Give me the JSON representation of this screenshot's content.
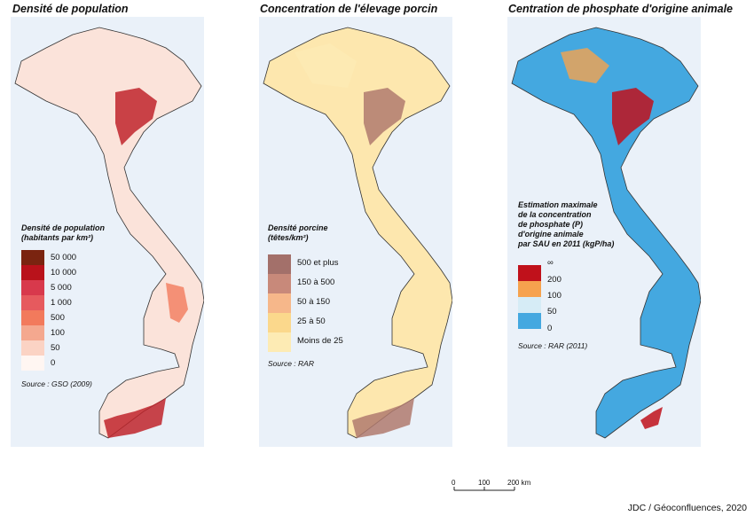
{
  "panels": [
    {
      "title": "Densité de population",
      "legend_title_1": "Densité de population",
      "legend_title_2": "(habitants par km²)",
      "classes": [
        {
          "label": "50 000",
          "color": "#7a2410"
        },
        {
          "label": "10 000",
          "color": "#b9121b"
        },
        {
          "label": "5 000",
          "color": "#d8394c"
        },
        {
          "label": "1 000",
          "color": "#e65a5e"
        },
        {
          "label": "500",
          "color": "#f27a5c"
        },
        {
          "label": "100",
          "color": "#f4a88f"
        },
        {
          "label": "50",
          "color": "#fbd3c4"
        },
        {
          "label": "0",
          "color": "#fff6f2"
        }
      ],
      "source": "Source : GSO (2009)",
      "map_fill": "#fbe3da",
      "map_accent": "#c0242c"
    },
    {
      "title": "Concentration de l'élevage porcin",
      "legend_title_1": "Densité porcine",
      "legend_title_2": "(têtes/km²)",
      "classes": [
        {
          "label": "500 et plus",
          "color": "#a3706a"
        },
        {
          "label": "150 à 500",
          "color": "#c8897a"
        },
        {
          "label": "50 à 150",
          "color": "#f6b78a"
        },
        {
          "label": "25 à 50",
          "color": "#fbd88c"
        },
        {
          "label": "Moins de 25",
          "color": "#fdebb4"
        }
      ],
      "source": "Source : RAR",
      "map_fill": "#fde7ae",
      "map_accent": "#b07a6e"
    },
    {
      "title": "Centration de phosphate d'origine animale",
      "legend_title_1": "Estimation maximale",
      "legend_title_2": "de la concentration",
      "legend_title_3": "de phosphate  (P)",
      "legend_title_4": "d'origine animale",
      "legend_title_5": "par SAU en 2011 (kgP/ha)",
      "classes": [
        {
          "label": "∞",
          "color": "#c0111b"
        },
        {
          "label": "200",
          "color": "#f6a24e"
        },
        {
          "label": "100",
          "color": "#d6ecf6"
        },
        {
          "label": "50",
          "color": "#44a8e0"
        },
        {
          "label": "0",
          "color": ""
        }
      ],
      "source": "Source : RAR (2011)",
      "map_fill": "#44a8e0",
      "map_accent": "#c0111b"
    }
  ],
  "scale_bar": {
    "ticks": [
      "0",
      "100",
      "200 km"
    ]
  },
  "credit": "JDC / Géoconfluences, 2020"
}
